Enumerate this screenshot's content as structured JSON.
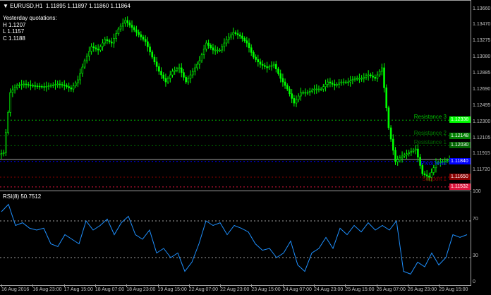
{
  "header": {
    "symbol": "EURUSD,H1",
    "ohlc": "1.11895 1.11897 1.11860 1.11864"
  },
  "info": {
    "title": "Yesterday quotations:",
    "high": "H 1.1207",
    "low": "L 1.1157",
    "close": "C 1.1188"
  },
  "colors": {
    "bull": "#00ff00",
    "bear": "#00ff00",
    "rsi": "#1e90ff",
    "background": "#000000"
  },
  "price_axis": [
    "1.13660",
    "1.13470",
    "1.13275",
    "1.13080",
    "1.12885",
    "1.12690",
    "1.12495",
    "1.12300",
    "1.12105",
    "1.11915",
    "1.11720"
  ],
  "levels": [
    {
      "name": "Resistance 3",
      "price": "1.12338",
      "color": "#00c000",
      "tag": "#00ff00"
    },
    {
      "name": "Resistance 2",
      "price": "1.12148",
      "color": "#008000",
      "tag": "#008000"
    },
    {
      "name": "Resistance 1",
      "price": "1.12030",
      "color": "#006400",
      "tag": "#006400"
    },
    {
      "name": "Pivot level",
      "price": "1.11840",
      "color": "#0000ff",
      "tag": "#0000ff"
    },
    {
      "name": "Support 1",
      "price": "1.11650",
      "color": "#8b0000",
      "tag": "#8b0000"
    },
    {
      "name": "",
      "price": "1.11532",
      "color": "#dc143c",
      "tag": "#dc143c"
    }
  ],
  "current_price": "1.11864",
  "rsi": {
    "label": "RSI(8) 50.7512",
    "axis": [
      "100",
      "70",
      "30",
      "0"
    ],
    "levels": [
      70,
      30
    ]
  },
  "time_axis": [
    "16 Aug 2016",
    "16 Aug 23:00",
    "17 Aug 15:00",
    "18 Aug 07:00",
    "18 Aug 23:00",
    "19 Aug 15:00",
    "22 Aug 07:00",
    "22 Aug 23:00",
    "23 Aug 15:00",
    "24 Aug 07:00",
    "24 Aug 23:00",
    "25 Aug 15:00",
    "26 Aug 07:00",
    "26 Aug 23:00",
    "29 Aug 15:00"
  ],
  "chart_data": {
    "type": "candlestick",
    "closes": [
      1.11947,
      1.12672,
      1.12757,
      1.12774,
      1.12757,
      1.12748,
      1.1274,
      1.12757,
      1.12774,
      1.12757,
      1.12714,
      1.12825,
      1.13055,
      1.13225,
      1.13183,
      1.13311,
      1.13268,
      1.13438,
      1.13541,
      1.13456,
      1.1337,
      1.13285,
      1.13098,
      1.12927,
      1.12799,
      1.12927,
      1.1297,
      1.12799,
      1.12927,
      1.13055,
      1.13268,
      1.13183,
      1.13183,
      1.13311,
      1.13396,
      1.13353,
      1.13268,
      1.13098,
      1.13012,
      1.1297,
      1.13012,
      1.12842,
      1.12714,
      1.12544,
      1.12672,
      1.12672,
      1.12714,
      1.12714,
      1.12799,
      1.12757,
      1.12799,
      1.12799,
      1.12842,
      1.12842,
      1.12885,
      1.12842,
      1.1297,
      1.12246,
      1.11837,
      1.11905,
      1.11947,
      1.1199,
      1.11692,
      1.11649,
      1.1182,
      1.11837,
      1.11862
    ],
    "price_range": [
      1.11497,
      1.1366
    ],
    "rsi_values": [
      80,
      88,
      65,
      68,
      62,
      60,
      62,
      45,
      42,
      55,
      50,
      45,
      70,
      60,
      65,
      72,
      55,
      68,
      75,
      55,
      50,
      60,
      35,
      40,
      30,
      35,
      15,
      25,
      45,
      70,
      65,
      68,
      55,
      65,
      62,
      58,
      45,
      38,
      40,
      30,
      35,
      48,
      22,
      15,
      35,
      40,
      52,
      40,
      62,
      55,
      65,
      58,
      68,
      60,
      65,
      60,
      70,
      15,
      12,
      25,
      20,
      35,
      22,
      30,
      55,
      52,
      55
    ],
    "rsi_range": [
      0,
      100
    ]
  }
}
